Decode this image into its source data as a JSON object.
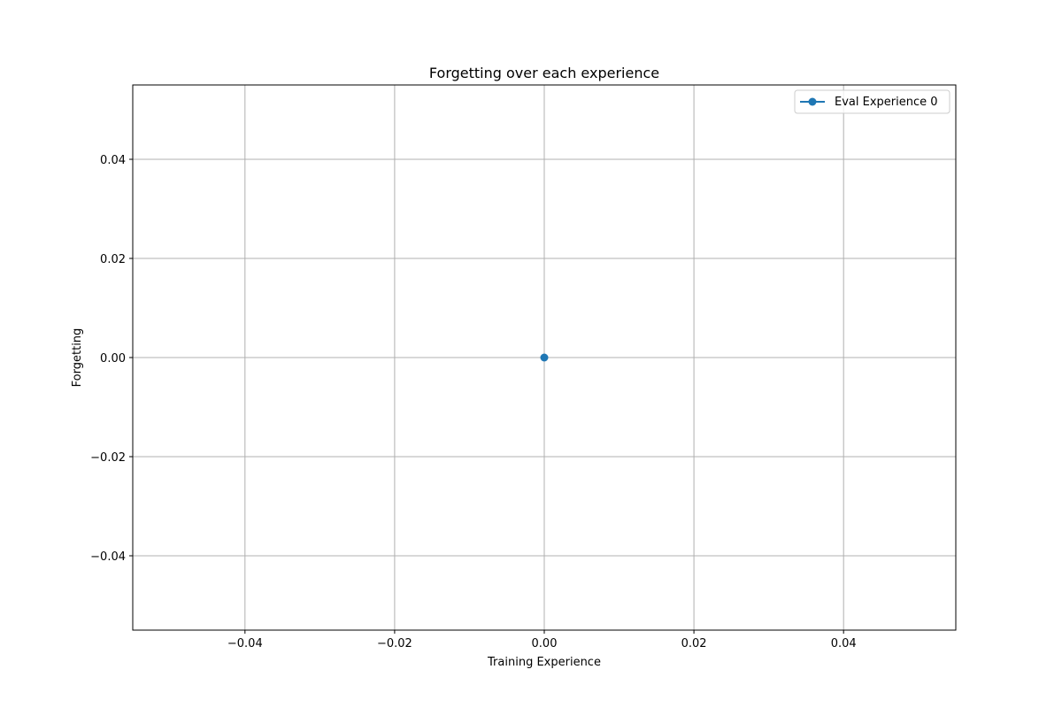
{
  "chart_data": {
    "type": "line",
    "title": "Forgetting over each experience",
    "xlabel": "Training Experience",
    "ylabel": "Forgetting",
    "xlim": [
      -0.055,
      0.055
    ],
    "ylim": [
      -0.055,
      0.055
    ],
    "xticks": [
      -0.04,
      -0.02,
      0.0,
      0.02,
      0.04
    ],
    "yticks": [
      -0.04,
      -0.02,
      0.0,
      0.02,
      0.04
    ],
    "xtick_labels": [
      "−0.04",
      "−0.02",
      "0.00",
      "0.02",
      "0.04"
    ],
    "ytick_labels": [
      "−0.04",
      "−0.02",
      "0.00",
      "0.02",
      "0.04"
    ],
    "grid": true,
    "legend_position": "upper right",
    "series": [
      {
        "name": "Eval Experience 0",
        "color": "#1f77b4",
        "marker": "circle",
        "x": [
          0
        ],
        "y": [
          0.0
        ]
      }
    ]
  }
}
